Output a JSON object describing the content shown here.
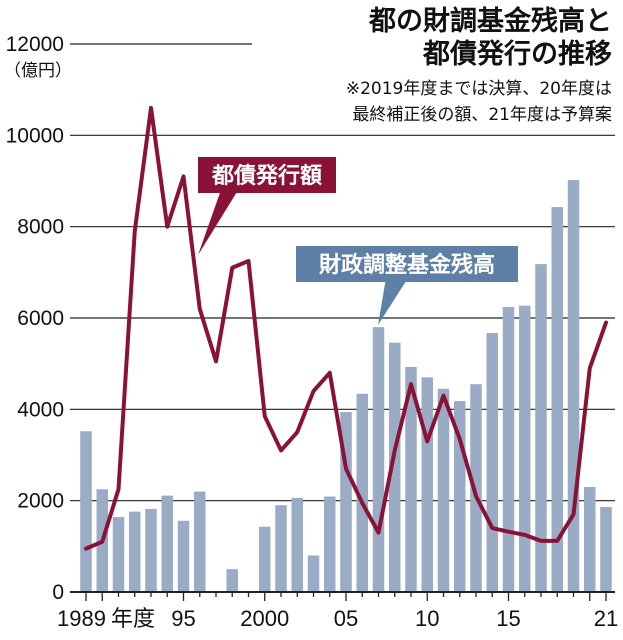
{
  "title_line1": "都の財調基金残高と",
  "title_line2": "都債発行の推移",
  "note_line1": "※2019年度までは決算、20年度は",
  "note_line2": "最終補正後の額、21年度は予算案",
  "unit": "（億円）",
  "colors": {
    "bar": "#9aabc6",
    "line": "#8a1236",
    "axis": "#222222",
    "gridline": "#222222"
  },
  "chart_data": {
    "type": "bar+line",
    "x": [
      1989,
      1990,
      1991,
      1992,
      1993,
      1994,
      1995,
      1996,
      1997,
      1998,
      1999,
      2000,
      2001,
      2002,
      2003,
      2004,
      2005,
      2006,
      2007,
      2008,
      2009,
      2010,
      2011,
      2012,
      2013,
      2014,
      2015,
      2016,
      2017,
      2018,
      2019,
      2020,
      2021
    ],
    "yticks": [
      0,
      2000,
      4000,
      6000,
      8000,
      10000,
      12000
    ],
    "ylim": [
      0,
      12000
    ],
    "xtick_labels": [
      {
        "year": 1989,
        "label": "1989"
      },
      {
        "year": 1990,
        "label": "年度"
      },
      {
        "year": 1995,
        "label": "95"
      },
      {
        "year": 2000,
        "label": "2000"
      },
      {
        "year": 2005,
        "label": "05"
      },
      {
        "year": 2010,
        "label": "10"
      },
      {
        "year": 2015,
        "label": "15"
      },
      {
        "year": 2021,
        "label": "21"
      }
    ],
    "series": [
      {
        "name": "財政調整基金残高",
        "type": "bar",
        "values": [
          3520,
          2250,
          1640,
          1760,
          1820,
          2110,
          1560,
          2200,
          0,
          500,
          0,
          1430,
          1900,
          2060,
          800,
          2090,
          3940,
          4340,
          5800,
          5460,
          4930,
          4700,
          4450,
          4180,
          4550,
          5670,
          6240,
          6270,
          7180,
          8430,
          9020,
          2300,
          1860
        ]
      },
      {
        "name": "都債発行額",
        "type": "line",
        "values": [
          950,
          1100,
          2250,
          7900,
          10600,
          8000,
          9100,
          6200,
          5050,
          7100,
          7250,
          3850,
          3100,
          3500,
          4400,
          4800,
          2700,
          1950,
          1300,
          3100,
          4550,
          3300,
          4300,
          3350,
          2100,
          1400,
          1320,
          1250,
          1120,
          1120,
          1700,
          4900,
          5900
        ]
      }
    ]
  }
}
